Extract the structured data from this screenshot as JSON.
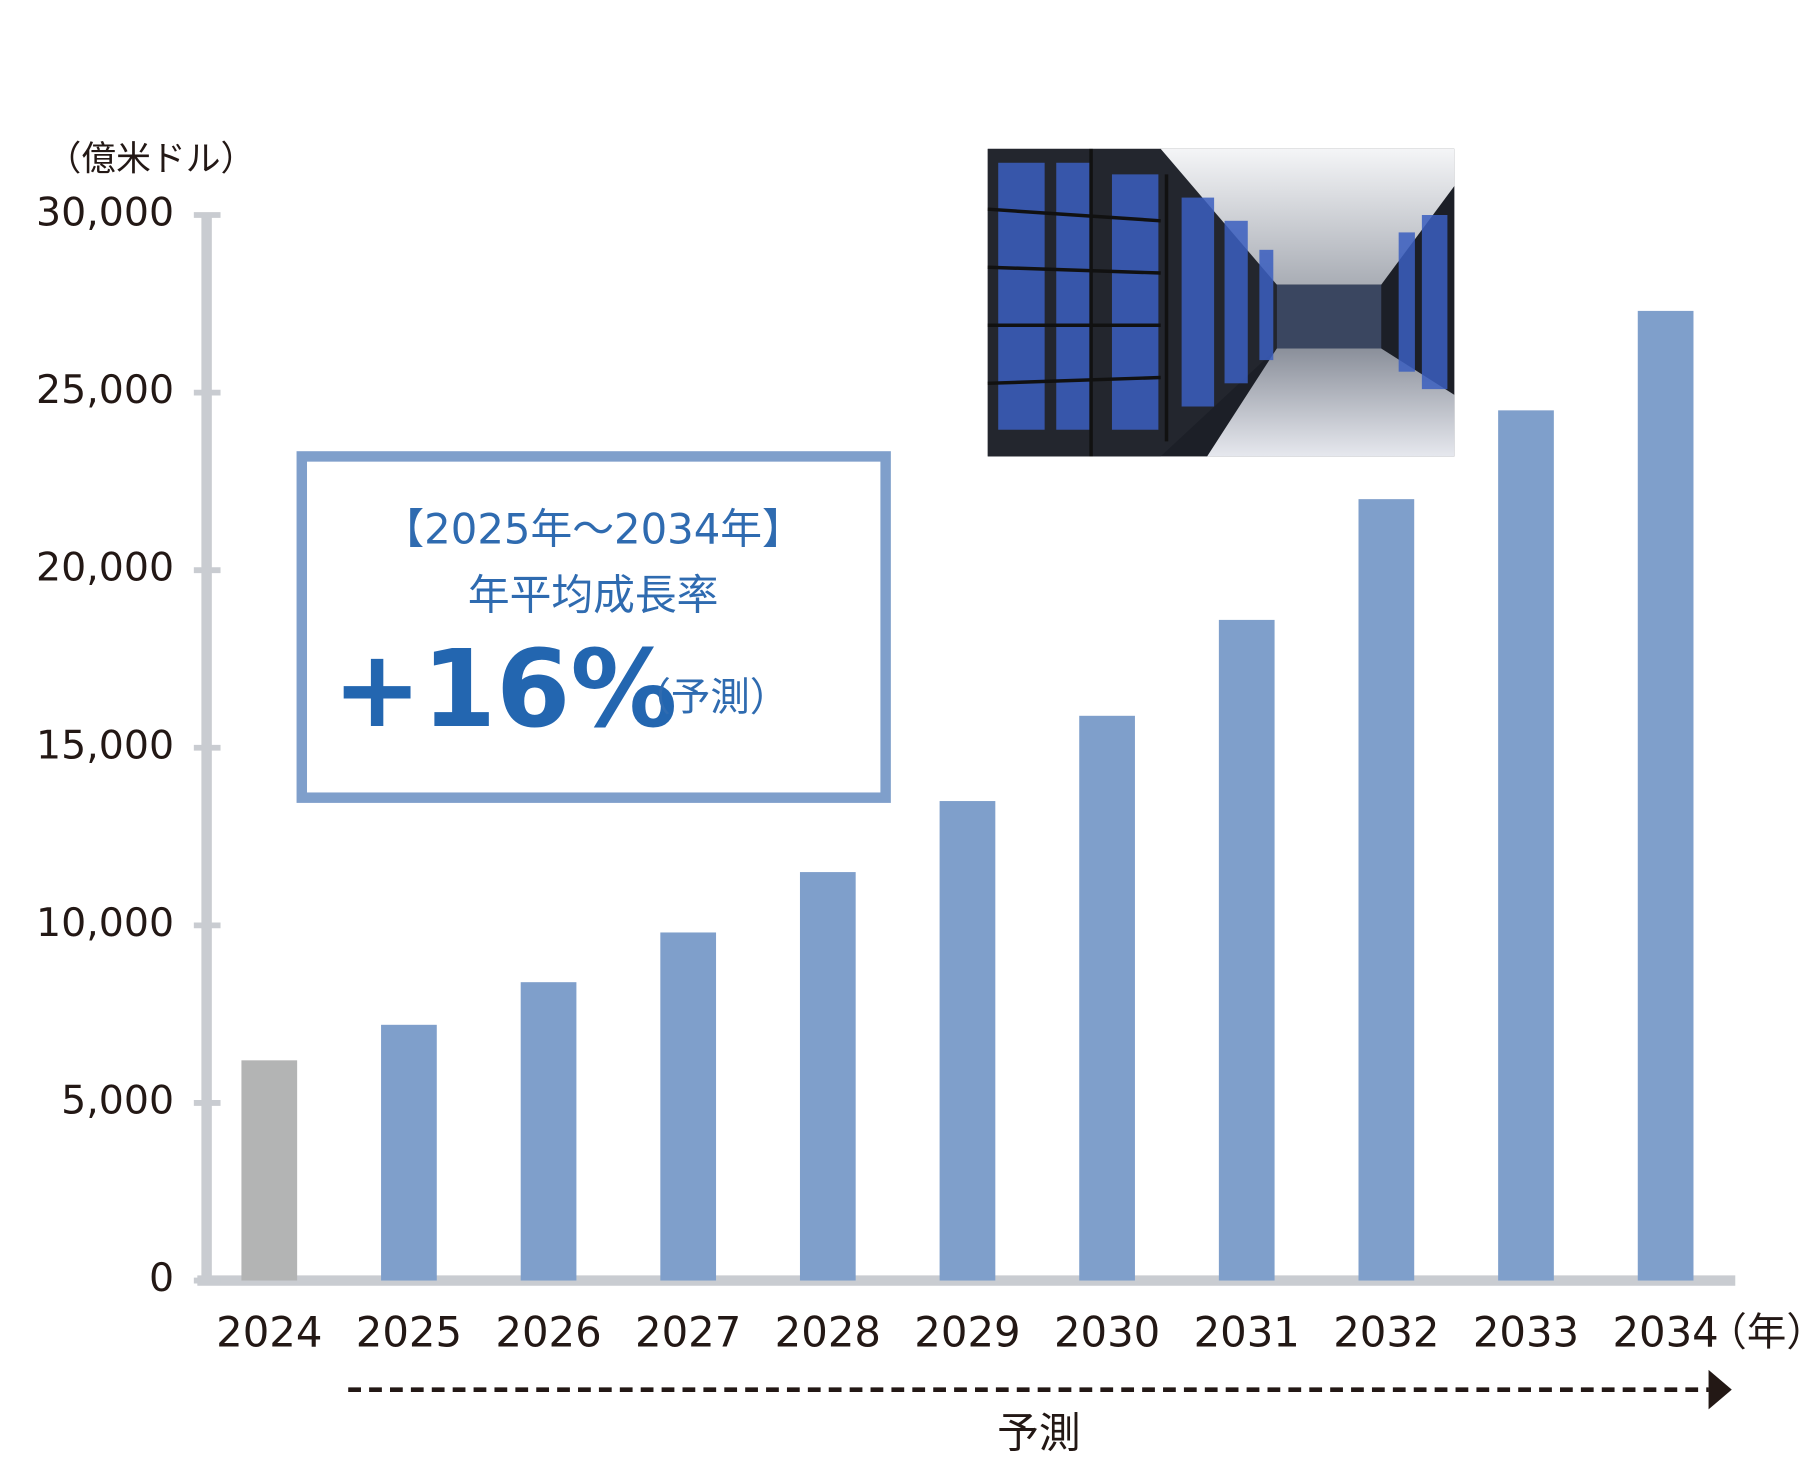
{
  "chart_data": {
    "type": "bar",
    "y_unit": "（億米ドル）",
    "x_unit": "（年）",
    "categories": [
      "2024",
      "2025",
      "2026",
      "2027",
      "2028",
      "2029",
      "2030",
      "2031",
      "2032",
      "2033",
      "2034"
    ],
    "values": [
      6200,
      7200,
      8400,
      9800,
      11500,
      13500,
      15900,
      18600,
      22000,
      24500,
      27300
    ],
    "colors": [
      "#b3b4b4",
      "#7f9fcb",
      "#7f9fcb",
      "#7f9fcb",
      "#7f9fcb",
      "#7f9fcb",
      "#7f9fcb",
      "#7f9fcb",
      "#7f9fcb",
      "#7f9fcb",
      "#7f9fcb"
    ],
    "ylim": [
      0,
      30000
    ],
    "yticks": [
      0,
      {
        "value": 5000,
        "label": "5,000"
      },
      {
        "value": 10000,
        "label": "10,000"
      },
      {
        "value": 15000,
        "label": "15,000"
      },
      {
        "value": 20000,
        "label": "20,000"
      },
      {
        "value": 25000,
        "label": "25,000"
      },
      {
        "value": 30000,
        "label": "30,000"
      }
    ],
    "grid": false,
    "annotation": {
      "period": "【2025年～2034年】",
      "label": "年平均成長率",
      "rate": "+16%",
      "note": "（予測）"
    },
    "forecast_label": "予測"
  }
}
